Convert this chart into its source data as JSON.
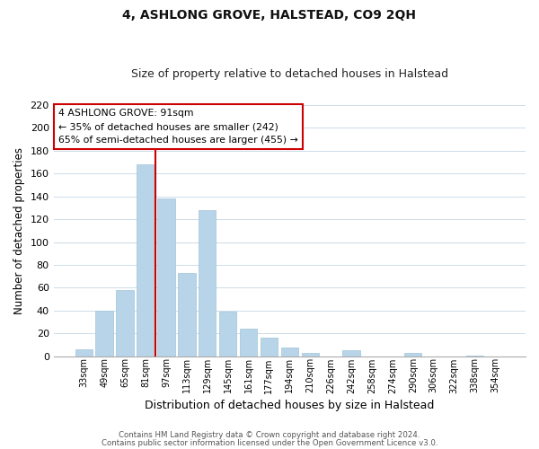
{
  "title": "4, ASHLONG GROVE, HALSTEAD, CO9 2QH",
  "subtitle": "Size of property relative to detached houses in Halstead",
  "xlabel": "Distribution of detached houses by size in Halstead",
  "ylabel": "Number of detached properties",
  "bar_color": "#b8d4e8",
  "bar_edge_color": "#9fc4da",
  "categories": [
    "33sqm",
    "49sqm",
    "65sqm",
    "81sqm",
    "97sqm",
    "113sqm",
    "129sqm",
    "145sqm",
    "161sqm",
    "177sqm",
    "194sqm",
    "210sqm",
    "226sqm",
    "242sqm",
    "258sqm",
    "274sqm",
    "290sqm",
    "306sqm",
    "322sqm",
    "338sqm",
    "354sqm"
  ],
  "values": [
    6,
    40,
    58,
    168,
    138,
    73,
    128,
    39,
    24,
    16,
    8,
    3,
    0,
    5,
    0,
    0,
    3,
    0,
    0,
    1,
    0
  ],
  "ylim": [
    0,
    220
  ],
  "yticks": [
    0,
    20,
    40,
    60,
    80,
    100,
    120,
    140,
    160,
    180,
    200,
    220
  ],
  "vline_color": "#cc0000",
  "vline_index": 3.5,
  "annotation_title": "4 ASHLONG GROVE: 91sqm",
  "annotation_line1": "← 35% of detached houses are smaller (242)",
  "annotation_line2": "65% of semi-detached houses are larger (455) →",
  "annotation_box_color": "#ffffff",
  "annotation_box_edge": "#cc0000",
  "footer1": "Contains HM Land Registry data © Crown copyright and database right 2024.",
  "footer2": "Contains public sector information licensed under the Open Government Licence v3.0.",
  "background_color": "#ffffff",
  "grid_color": "#cddce8"
}
